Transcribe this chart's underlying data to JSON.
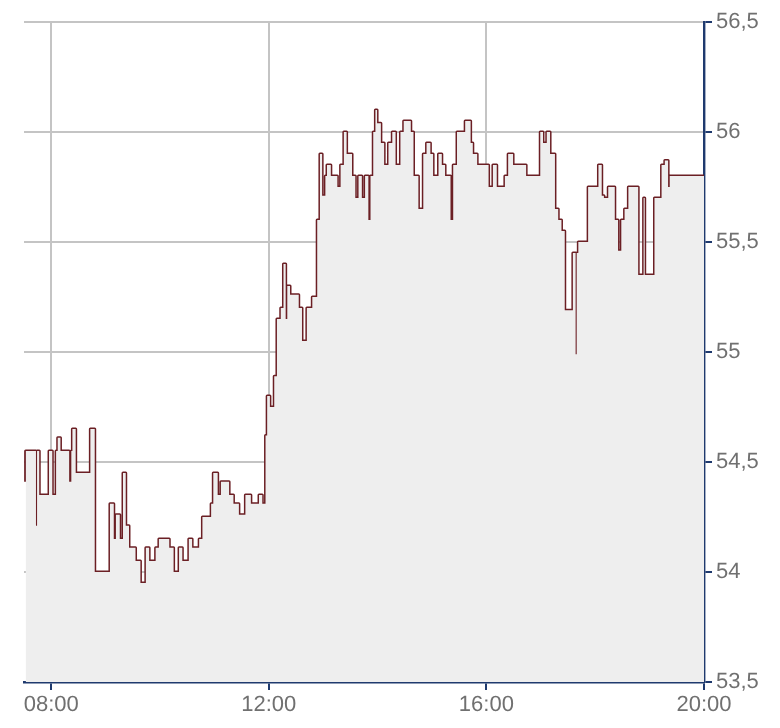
{
  "chart_data": {
    "type": "step",
    "legend": false,
    "grid": true,
    "x": [
      7.53,
      7.56,
      7.72,
      7.74,
      7.78,
      7.96,
      8.02,
      8.09,
      8.12,
      8.17,
      8.33,
      8.37,
      8.39,
      8.45,
      8.72,
      8.8,
      9.08,
      9.15,
      9.19,
      9.26,
      9.32,
      9.37,
      9.43,
      9.55,
      9.64,
      9.74,
      9.8,
      9.92,
      9.98,
      10.17,
      10.25,
      10.35,
      10.41,
      10.53,
      10.59,
      10.72,
      10.78,
      10.94,
      10.98,
      11.06,
      11.12,
      11.27,
      11.35,
      11.45,
      11.57,
      11.67,
      11.82,
      11.88,
      11.94,
      11.97,
      12.02,
      12.1,
      12.15,
      12.22,
      12.27,
      12.31,
      12.34,
      12.39,
      12.55,
      12.61,
      12.7,
      12.8,
      12.89,
      12.94,
      12.98,
      13.04,
      13.07,
      13.14,
      13.26,
      13.32,
      13.38,
      13.43,
      13.53,
      13.59,
      13.65,
      13.71,
      13.77,
      13.83,
      13.87,
      13.92,
      13.96,
      13.99,
      14.06,
      14.12,
      14.2,
      14.27,
      14.33,
      14.42,
      14.48,
      14.61,
      14.66,
      14.75,
      14.84,
      14.9,
      14.97,
      15.02,
      15.12,
      15.18,
      15.24,
      15.34,
      15.39,
      15.46,
      15.61,
      15.71,
      15.75,
      15.83,
      15.92,
      16.04,
      16.12,
      16.19,
      16.34,
      16.4,
      16.49,
      16.73,
      16.99,
      17.04,
      17.11,
      17.17,
      17.26,
      17.32,
      17.38,
      17.44,
      17.59,
      17.64,
      17.66,
      17.69,
      17.87,
      18.06,
      18.12,
      18.16,
      18.24,
      18.36,
      18.42,
      18.48,
      18.54,
      18.61,
      18.79,
      18.89,
      18.91,
      19.09,
      19.22,
      19.28,
      19.34,
      19.37,
      19.42,
      20
    ],
    "xlim": [
      7.5,
      20
    ],
    "xticks": [
      {
        "value": 8,
        "label": "08:00"
      },
      {
        "value": 12,
        "label": "12:00"
      },
      {
        "value": 16,
        "label": "16:00"
      },
      {
        "value": 20,
        "label": "20:00"
      }
    ],
    "y2lim": [
      53.5,
      56.5
    ],
    "y2ticks": [
      {
        "value": 53.5,
        "label": "53,5"
      },
      54,
      {
        "value": 54.5,
        "label": "54,5"
      },
      55,
      {
        "value": 55.5,
        "label": "55,5"
      },
      56,
      {
        "value": 56.5,
        "label": "56,5"
      }
    ],
    "series": [
      {
        "type": "area",
        "color": "#eeeeee",
        "axis": "y2",
        "values": [
          54.41,
          54.55,
          54.55,
          54.21,
          54.55,
          54.35,
          54.55,
          54.35,
          54.55,
          54.61,
          54.55,
          54.41,
          54.55,
          54.65,
          54.45,
          54.65,
          54.0,
          54.31,
          54.15,
          54.26,
          54.15,
          54.45,
          54.21,
          54.11,
          54.05,
          53.95,
          54.11,
          54.05,
          54.11,
          54.15,
          54.11,
          54.0,
          54.11,
          54.05,
          54.15,
          54.11,
          54.15,
          54.25,
          54.31,
          54.45,
          54.35,
          54.41,
          54.35,
          54.31,
          54.26,
          54.35,
          54.31,
          54.35,
          54.31,
          54.62,
          54.8,
          54.75,
          54.89,
          55.15,
          55.2,
          55.4,
          55.15,
          55.3,
          55.26,
          55.2,
          55.05,
          55.2,
          55.25,
          55.6,
          55.9,
          55.71,
          55.8,
          55.85,
          55.8,
          55.75,
          55.85,
          56.0,
          55.9,
          55.8,
          55.7,
          55.8,
          55.7,
          55.8,
          55.6,
          55.8,
          56.0,
          56.1,
          56.04,
          55.95,
          55.85,
          55.95,
          56.0,
          55.85,
          56.0,
          56.05,
          56.0,
          55.8,
          55.65,
          55.9,
          55.95,
          55.9,
          55.8,
          55.9,
          55.85,
          55.8,
          55.6,
          55.85,
          56.0,
          56.05,
          55.95,
          55.9,
          55.85,
          55.85,
          55.75,
          55.85,
          55.75,
          55.8,
          55.9,
          55.85,
          55.8,
          56.0,
          55.95,
          56.0,
          55.9,
          55.65,
          55.6,
          55.55,
          55.19,
          55.45,
          54.99,
          55.45,
          55.5,
          55.75,
          55.85,
          55.71,
          55.7,
          55.75,
          55.6,
          55.46,
          55.6,
          55.65,
          55.75,
          55.35,
          55.7,
          55.35,
          55.7,
          55.85,
          55.87,
          55.75,
          55.8,
          55.8
        ]
      },
      {
        "color": "#6b1f24",
        "axis": "y2",
        "x": [
          7.53,
          7.56,
          7.72,
          7.74,
          7.78,
          7.96,
          8.02,
          8.09,
          8.12,
          8.17,
          8.33,
          8.37,
          8.39,
          8.45,
          8.72,
          8.8,
          9.08,
          9.15,
          9.19,
          9.26,
          9.32,
          9.37,
          9.43,
          9.55,
          9.64,
          9.74,
          9.8,
          9.92,
          9.98,
          10.17,
          10.25,
          10.35,
          10.41,
          10.53,
          10.59,
          10.72,
          10.78,
          10.94,
          10.98,
          11.06,
          11.12,
          11.27,
          11.35,
          11.45,
          11.57,
          11.67,
          11.82,
          11.88,
          11.94,
          11.97,
          12.02,
          12.1,
          12.15,
          12.22,
          12.27,
          12.31,
          12.34,
          12.39,
          12.55,
          12.61,
          12.7,
          12.8,
          12.89,
          12.94,
          12.98,
          13.04,
          13.07,
          13.14,
          13.26,
          13.32,
          13.38,
          13.43,
          13.53,
          13.59,
          13.65,
          13.71,
          13.77,
          13.83,
          13.87,
          13.92,
          13.96,
          13.99,
          14.06,
          14.12,
          14.2,
          14.27,
          14.33,
          14.42,
          14.48,
          14.61,
          14.66,
          14.75,
          14.84,
          14.9,
          14.97,
          15.02,
          15.12,
          15.18,
          15.24,
          15.34,
          15.39,
          15.46,
          15.61,
          15.71,
          15.75,
          15.83,
          15.92,
          16.04,
          16.12,
          16.19,
          16.34,
          16.4,
          16.49,
          16.73,
          16.99,
          17.04,
          17.11,
          17.17,
          17.26,
          17.32,
          17.38,
          17.44,
          17.59,
          17.64,
          17.66,
          17.69,
          17.87,
          18.06,
          18.12,
          18.16,
          18.24,
          18.36,
          18.42,
          18.48,
          18.54,
          18.61,
          18.79,
          18.89,
          18.91,
          19.09,
          19.22,
          19.28,
          19.34,
          19.37,
          19.42,
          20
        ],
        "values": [
          54.41,
          54.55,
          54.55,
          54.21,
          54.55,
          54.35,
          54.55,
          54.35,
          54.55,
          54.61,
          54.55,
          54.41,
          54.55,
          54.65,
          54.45,
          54.65,
          54.0,
          54.31,
          54.15,
          54.26,
          54.15,
          54.45,
          54.21,
          54.11,
          54.05,
          53.95,
          54.11,
          54.05,
          54.11,
          54.15,
          54.11,
          54.0,
          54.11,
          54.05,
          54.15,
          54.11,
          54.15,
          54.25,
          54.31,
          54.45,
          54.35,
          54.41,
          54.35,
          54.31,
          54.26,
          54.35,
          54.31,
          54.35,
          54.31,
          54.62,
          54.8,
          54.75,
          54.89,
          55.15,
          55.2,
          55.4,
          55.15,
          55.3,
          55.26,
          55.2,
          55.05,
          55.2,
          55.25,
          55.6,
          55.9,
          55.71,
          55.8,
          55.85,
          55.8,
          55.75,
          55.85,
          56.0,
          55.9,
          55.8,
          55.7,
          55.8,
          55.7,
          55.8,
          55.6,
          55.8,
          56.0,
          56.1,
          56.04,
          55.95,
          55.85,
          55.95,
          56.0,
          55.85,
          56.0,
          56.05,
          56.0,
          55.8,
          55.65,
          55.9,
          55.95,
          55.9,
          55.8,
          55.9,
          55.85,
          55.8,
          55.6,
          55.85,
          56.0,
          56.05,
          55.95,
          55.9,
          55.85,
          55.85,
          55.75,
          55.85,
          55.75,
          55.8,
          55.9,
          55.85,
          55.8,
          56.0,
          55.95,
          56.0,
          55.9,
          55.65,
          55.6,
          55.55,
          55.19,
          55.45,
          54.99,
          55.45,
          55.5,
          55.75,
          55.85,
          55.71,
          55.7,
          55.75,
          55.6,
          55.46,
          55.6,
          55.65,
          55.75,
          55.35,
          55.7,
          55.35,
          55.7,
          55.85,
          55.87,
          55.75,
          55.8,
          55.8
        ]
      }
    ]
  }
}
